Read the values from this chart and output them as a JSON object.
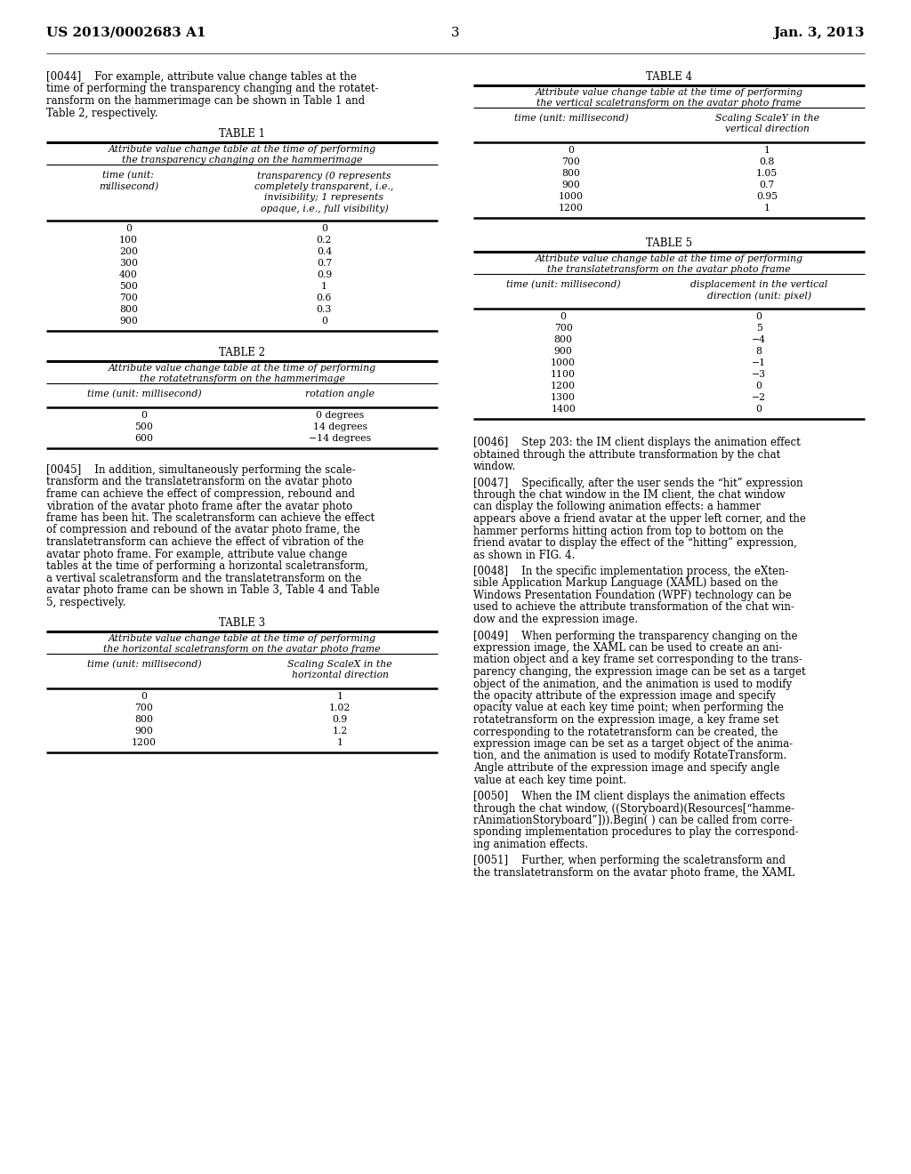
{
  "bg_color": "#ffffff",
  "header_left": "US 2013/0002683 A1",
  "header_right": "Jan. 3, 2013",
  "page_number": "3",
  "table1_title": "TABLE 1",
  "table1_subtitle1": "Attribute value change table at the time of performing",
  "table1_subtitle2": "the transparency changing on the hammerimage",
  "table1_col1_header": "time (unit:\nmillisecond)",
  "table1_col2_header": "transparency (0 represents\ncompletely transparent, i.e.,\ninvisibility; 1 represents\nopaque, i.e., full visibility)",
  "table1_data": [
    [
      "0",
      "0"
    ],
    [
      "100",
      "0.2"
    ],
    [
      "200",
      "0.4"
    ],
    [
      "300",
      "0.7"
    ],
    [
      "400",
      "0.9"
    ],
    [
      "500",
      "1"
    ],
    [
      "700",
      "0.6"
    ],
    [
      "800",
      "0.3"
    ],
    [
      "900",
      "0"
    ]
  ],
  "table2_title": "TABLE 2",
  "table2_subtitle1": "Attribute value change table at the time of performing",
  "table2_subtitle2": "the rotatetransform on the hammerimage",
  "table2_col1_header": "time (unit: millisecond)",
  "table2_col2_header": "rotation angle",
  "table2_data": [
    [
      "0",
      "0 degrees"
    ],
    [
      "500",
      "14 degrees"
    ],
    [
      "600",
      "−14 degrees"
    ]
  ],
  "table3_title": "TABLE 3",
  "table3_subtitle1": "Attribute value change table at the time of performing",
  "table3_subtitle2": "the horizontal scaletransform on the avatar photo frame",
  "table3_col1_header": "time (unit: millisecond)",
  "table3_col2_header": "Scaling ScaleX in the\nhorizontal direction",
  "table3_data": [
    [
      "0",
      "1"
    ],
    [
      "700",
      "1.02"
    ],
    [
      "800",
      "0.9"
    ],
    [
      "900",
      "1.2"
    ],
    [
      "1200",
      "1"
    ]
  ],
  "table4_title": "TABLE 4",
  "table4_subtitle1": "Attribute value change table at the time of performing",
  "table4_subtitle2": "the vertical scaletransform on the avatar photo frame",
  "table4_col1_header": "time (unit: millisecond)",
  "table4_col2_header": "Scaling ScaleY in the\nvertical direction",
  "table4_data": [
    [
      "0",
      "1"
    ],
    [
      "700",
      "0.8"
    ],
    [
      "800",
      "1.05"
    ],
    [
      "900",
      "0.7"
    ],
    [
      "1000",
      "0.95"
    ],
    [
      "1200",
      "1"
    ]
  ],
  "table5_title": "TABLE 5",
  "table5_subtitle1": "Attribute value change table at the time of performing",
  "table5_subtitle2": "the translatetransform on the avatar photo frame",
  "table5_col1_header": "time (unit: millisecond)",
  "table5_col2_header": "displacement in the vertical\ndirection (unit: pixel)",
  "table5_data": [
    [
      "0",
      "0"
    ],
    [
      "700",
      "5"
    ],
    [
      "800",
      "−4"
    ],
    [
      "900",
      "8"
    ],
    [
      "1000",
      "−1"
    ],
    [
      "1100",
      "−3"
    ],
    [
      "1200",
      "0"
    ],
    [
      "1300",
      "−2"
    ],
    [
      "1400",
      "0"
    ]
  ],
  "para44_lines": [
    "[0044]    For example, attribute value change tables at the",
    "time of performing the transparency changing and the rotatet-",
    "ransform on the hammerimage can be shown in Table 1 and",
    "Table 2, respectively."
  ],
  "para45_lines": [
    "[0045]    In addition, simultaneously performing the scale-",
    "transform and the translatetransform on the avatar photo",
    "frame can achieve the effect of compression, rebound and",
    "vibration of the avatar photo frame after the avatar photo",
    "frame has been hit. The scaletransform can achieve the effect",
    "of compression and rebound of the avatar photo frame, the",
    "translatetransform can achieve the effect of vibration of the",
    "avatar photo frame. For example, attribute value change",
    "tables at the time of performing a horizontal scaletransform,",
    "a vertival scaletransform and the translatetransform on the",
    "avatar photo frame can be shown in Table 3, Table 4 and Table",
    "5, respectively."
  ],
  "para46_lines": [
    "[0046]    Step 203: the IM client displays the animation effect",
    "obtained through the attribute transformation by the chat",
    "window."
  ],
  "para47_lines": [
    "[0047]    Specifically, after the user sends the “hit” expression",
    "through the chat window in the IM client, the chat window",
    "can display the following animation effects: a hammer",
    "appears above a friend avatar at the upper left corner, and the",
    "hammer performs hitting action from top to bottom on the",
    "friend avatar to display the effect of the “hitting” expression,",
    "as shown in FIG. 4."
  ],
  "para48_lines": [
    "[0048]    In the specific implementation process, the eXten-",
    "sible Application Markup Language (XAML) based on the",
    "Windows Presentation Foundation (WPF) technology can be",
    "used to achieve the attribute transformation of the chat win-",
    "dow and the expression image."
  ],
  "para49_lines": [
    "[0049]    When performing the transparency changing on the",
    "expression image, the XAML can be used to create an ani-",
    "mation object and a key frame set corresponding to the trans-",
    "parency changing, the expression image can be set as a target",
    "object of the animation, and the animation is used to modify",
    "the opacity attribute of the expression image and specify",
    "opacity value at each key time point; when performing the",
    "rotatetransform on the expression image, a key frame set",
    "corresponding to the rotatetransform can be created, the",
    "expression image can be set as a target object of the anima-",
    "tion, and the animation is used to modify RotateTransform.",
    "Angle attribute of the expression image and specify angle",
    "value at each key time point."
  ],
  "para50_lines": [
    "[0050]    When the IM client displays the animation effects",
    "through the chat window, ((Storyboard)(Resources[“hamme-",
    "rAnimationStoryboard”])).Begin( ) can be called from corre-",
    "sponding implementation procedures to play the correspond-",
    "ing animation effects."
  ],
  "para51_lines": [
    "[0051]    Further, when performing the scaletransform and",
    "the translatetransform on the avatar photo frame, the XAML"
  ]
}
